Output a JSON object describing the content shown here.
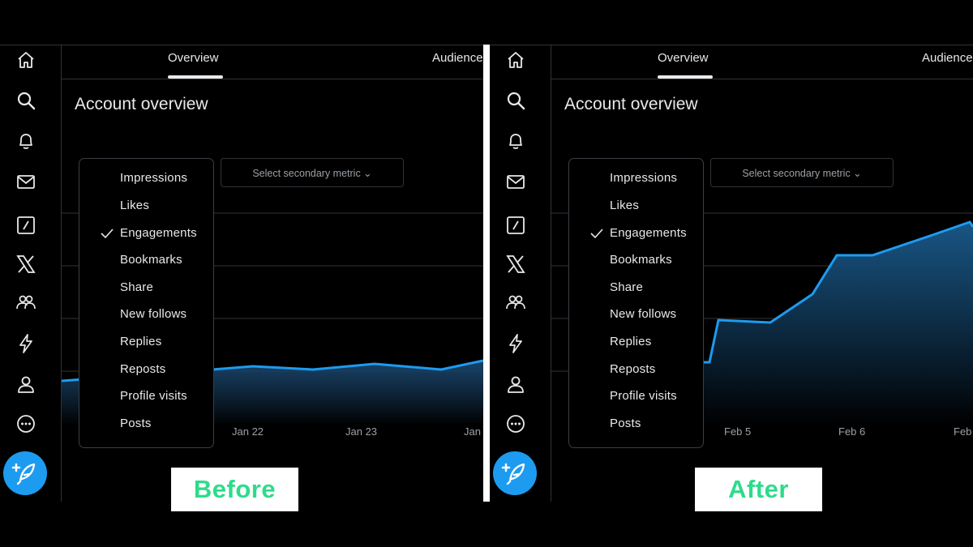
{
  "tabs": {
    "overview": "Overview",
    "audience": "Audience"
  },
  "title": "Account overview",
  "secondary_metric": "Select secondary metric ⌄",
  "metrics_menu": {
    "items": [
      "Impressions",
      "Likes",
      "Engagements",
      "Bookmarks",
      "Share",
      "New follows",
      "Replies",
      "Reposts",
      "Profile visits",
      "Posts"
    ],
    "selected": "Engagements"
  },
  "nav_icons": [
    "home-icon",
    "search-icon",
    "bell-icon",
    "mail-icon",
    "grok-icon",
    "x-logo-icon",
    "communities-icon",
    "lightning-icon",
    "profile-icon",
    "more-icon"
  ],
  "colors": {
    "line": "#1d9bf0",
    "badge_text": "#2cdc8a",
    "compose": "#1d9bf0"
  },
  "panels": {
    "before": {
      "badge": "Before",
      "x_labels": [
        "Jan 22",
        "Jan 23",
        "Jan"
      ],
      "chart_data": {
        "type": "area",
        "trend": [
          0.35,
          0.39,
          0.37,
          0.4,
          0.37,
          0.45
        ]
      }
    },
    "after": {
      "badge": "After",
      "x_labels": [
        "Feb 5",
        "Feb 6",
        "Feb"
      ],
      "chart_data": {
        "type": "area",
        "trend": [
          0.25,
          0.62,
          0.61,
          0.79,
          0.98,
          0.98,
          1.07,
          1.15,
          1.0
        ]
      }
    }
  }
}
